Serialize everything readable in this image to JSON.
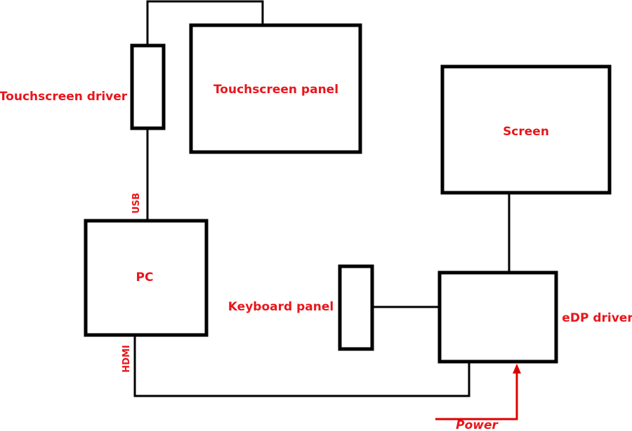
{
  "labels": {
    "touchscreen_driver": "Touchscreen driver",
    "touchscreen_panel": "Touchscreen panel",
    "screen": "Screen",
    "pc": "PC",
    "keyboard_panel": "Keyboard panel",
    "edp_driver": "eDP driver",
    "usb": "USB",
    "hdmi": "HDMI",
    "power": "Power"
  },
  "colors": {
    "label": "#e8161b",
    "power_line": "#dd0000",
    "line": "#000000"
  }
}
